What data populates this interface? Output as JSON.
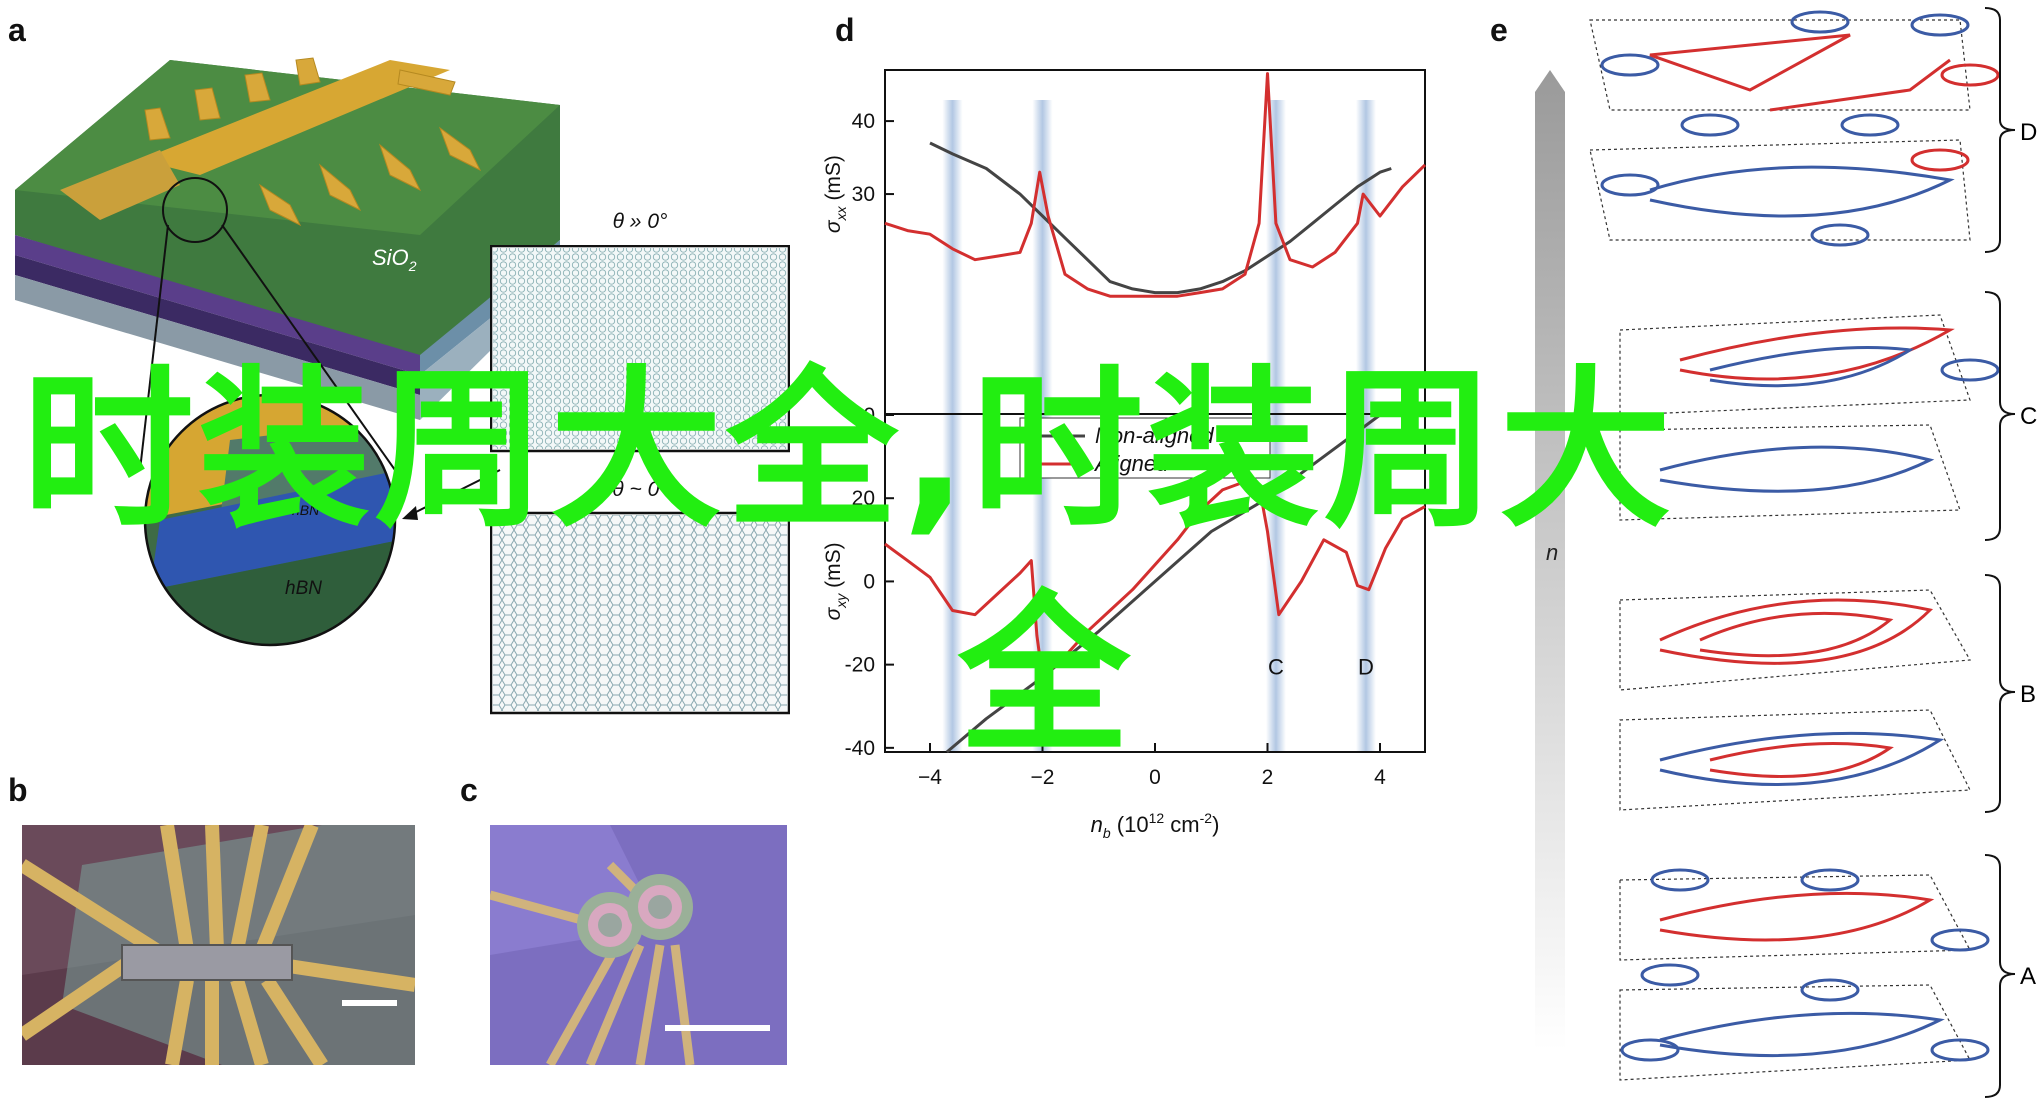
{
  "panels": {
    "a": "a",
    "b": "b",
    "c": "c",
    "d": "d",
    "e": "e"
  },
  "panel_a": {
    "substrate_label": "SiO",
    "substrate_sub": "2",
    "layer_bottom": "hBN",
    "layer_top_partial": "hBN",
    "moire_top_title": "θ » 0°",
    "moire_bottom_title": "θ ~ 0°"
  },
  "colors": {
    "red": "#d32f2f",
    "blue": "#3b5ba5",
    "dark": "#444444",
    "overlay": "#22ee11",
    "stripe": "#a9c1e0"
  },
  "chart_data": {
    "type": "line",
    "xlabel": "n_b (10^12 cm^-2)",
    "xlim": [
      -4.8,
      4.8
    ],
    "xticks": [
      -4,
      -2,
      0,
      2,
      4
    ],
    "legend": [
      "Non-aligned",
      "Aligned"
    ],
    "legend_position": "top-left of lower panel",
    "highlight_labels": [
      "C",
      "D"
    ],
    "upper": {
      "ylabel": "σxx (mS)",
      "ylim": [
        0,
        47
      ],
      "yticks": [
        40,
        30
      ],
      "series": [
        {
          "name": "Non-aligned",
          "x": [
            -4,
            -3.6,
            -3,
            -2.4,
            -2,
            -1.6,
            -1.2,
            -0.8,
            -0.4,
            0,
            0.4,
            0.8,
            1.2,
            1.6,
            2,
            2.4,
            2.8,
            3.2,
            3.6,
            4,
            4.2
          ],
          "y": [
            37,
            35.5,
            33.5,
            30,
            27,
            24,
            21,
            18,
            17,
            16.5,
            16.5,
            17,
            18,
            19.5,
            21.5,
            23.5,
            26,
            28.5,
            31,
            33,
            33.5
          ]
        },
        {
          "name": "Aligned",
          "x": [
            -4.8,
            -4.4,
            -4,
            -3.6,
            -3.2,
            -2.8,
            -2.4,
            -2.2,
            -2.05,
            -1.9,
            -1.6,
            -1.2,
            -0.8,
            -0.4,
            0,
            0.4,
            0.8,
            1.2,
            1.6,
            1.85,
            2,
            2.15,
            2.4,
            2.8,
            3.2,
            3.6,
            3.7,
            4,
            4.4,
            4.8
          ],
          "y": [
            26,
            25,
            24.5,
            22.5,
            21,
            21.5,
            22,
            26,
            33,
            27,
            19,
            17,
            16,
            16,
            16,
            16,
            16.5,
            17,
            19,
            26,
            46.5,
            26,
            21,
            20,
            22,
            26,
            30,
            27,
            31,
            34
          ]
        }
      ]
    },
    "lower": {
      "ylabel": "σxy (mS)",
      "ylim": [
        -41,
        40
      ],
      "yticks": [
        -40,
        -20,
        0,
        20,
        40
      ],
      "series": [
        {
          "name": "Non-aligned",
          "x": [
            -3.7,
            -3,
            -2,
            -1,
            0,
            1,
            2,
            3,
            4,
            4.2
          ],
          "y": [
            -41,
            -33,
            -23,
            -12,
            0,
            12,
            20,
            30,
            40,
            42
          ]
        },
        {
          "name": "Aligned",
          "x": [
            -4.8,
            -4.4,
            -4,
            -3.6,
            -3.2,
            -2.8,
            -2.4,
            -2.2,
            -2.1,
            -2,
            -1.6,
            -1.2,
            -0.8,
            -0.4,
            0,
            0.4,
            0.8,
            1.2,
            1.6,
            1.85,
            2,
            2.2,
            2.6,
            3,
            3.4,
            3.6,
            3.8,
            4.1,
            4.4,
            4.8
          ],
          "y": [
            9,
            5,
            1,
            -7,
            -8,
            -3,
            2,
            5,
            -13,
            -23,
            -18,
            -12,
            -7,
            -2,
            4,
            10,
            17,
            22,
            24,
            23,
            12,
            -8,
            0,
            10,
            7,
            -1,
            -2,
            8,
            15,
            18
          ]
        }
      ]
    },
    "stripes_x": [
      -3.6,
      -2,
      2.15,
      3.75
    ]
  },
  "panel_e": {
    "arrow_label": "n",
    "group_labels": [
      "D",
      "C",
      "B",
      "A"
    ]
  },
  "overlay": {
    "line1": "时装周大全,时装周大",
    "line2": "全"
  }
}
